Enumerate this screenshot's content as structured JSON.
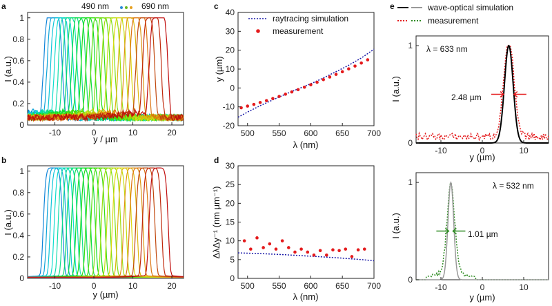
{
  "panels": {
    "a": {
      "label": "a",
      "xlabel": "y / µm",
      "ylabel": "I (a.u.)",
      "note_left": "490 nm",
      "note_right": "690 nm",
      "xticks": [
        "-10",
        "0",
        "10",
        "20"
      ],
      "yticks": [
        "0",
        "0.2",
        "0.4",
        "0.6",
        "0.8",
        "1"
      ]
    },
    "b": {
      "label": "b",
      "xlabel": "y (µm)",
      "ylabel": "I (a.u.)",
      "xticks": [
        "-10",
        "0",
        "10",
        "20"
      ],
      "yticks": [
        "0",
        "0.2",
        "0.4",
        "0.6",
        "0.8",
        "1"
      ]
    },
    "c": {
      "label": "c",
      "xlabel": "λ (nm)",
      "ylabel": "y (µm)",
      "legend": [
        "raytracing simulation",
        "measurement"
      ],
      "xticks": [
        "500",
        "550",
        "600",
        "650",
        "700"
      ],
      "yticks": [
        "-20",
        "-10",
        "0",
        "10",
        "20",
        "30",
        "40"
      ]
    },
    "d": {
      "label": "d",
      "xlabel": "λ (nm)",
      "ylabel": "ΔλΔy⁻¹ (nm µm⁻¹)",
      "xticks": [
        "500",
        "550",
        "600",
        "650",
        "700"
      ],
      "yticks": [
        "0",
        "5",
        "10",
        "15",
        "20",
        "25",
        "30"
      ]
    },
    "e": {
      "label": "e",
      "legend": [
        "wave-optical simulation",
        "measurement"
      ],
      "top": {
        "lambda_label": "λ = 633 nm",
        "width_label": "2.48 µm",
        "xlabel": "y (µm)",
        "ylabel": "I (a.u.)",
        "xticks": [
          "-10",
          "0",
          "10"
        ],
        "yticks": [
          "0",
          "1"
        ]
      },
      "bottom": {
        "lambda_label": "λ = 532 nm",
        "width_label": "1.01 µm",
        "xlabel": "y (µm)",
        "ylabel": "I (a.u.)",
        "xticks": [
          "-10",
          "0",
          "10"
        ],
        "yticks": [
          "0",
          "1"
        ]
      }
    }
  },
  "colors": {
    "simulation_line": "#1a1aa8",
    "measurement_dots": "#e41a1c",
    "wave_black": "#000000",
    "wave_gray": "#999999",
    "meas_red": "#e41a1c",
    "meas_green": "#2e8b22",
    "arrow_red": "#e41a1c",
    "arrow_green": "#2e8b22",
    "label_blue": "#2a8ad8",
    "label_red": "#b01010"
  },
  "chart_data": [
    {
      "type": "line",
      "panel": "a",
      "description_series": "normalized measured intensity profiles for wavelengths 490–690 nm",
      "x_range": [
        -17,
        23
      ],
      "ylim": [
        0,
        1.05
      ],
      "series_peaks_um": [
        -10.5,
        -9.6,
        -8.7,
        -7.7,
        -6.7,
        -5.6,
        -4.5,
        -3.3,
        -2.1,
        -0.9,
        0.4,
        1.7,
        3.0,
        4.4,
        5.8,
        7.2,
        8.6,
        10.1,
        11.6,
        13.2,
        14.9,
        16.6
      ],
      "series_wavelength_nm": [
        490,
        500,
        510,
        520,
        530,
        540,
        550,
        560,
        570,
        580,
        590,
        600,
        610,
        620,
        630,
        640,
        650,
        660,
        670,
        680,
        690,
        700
      ]
    },
    {
      "type": "line",
      "panel": "b",
      "x_range": [
        -17,
        23
      ],
      "ylim": [
        0,
        1.05
      ],
      "series_peaks_um": [
        -10.5,
        -9.6,
        -8.7,
        -7.7,
        -6.7,
        -5.6,
        -4.5,
        -3.3,
        -2.1,
        -0.9,
        0.4,
        1.7,
        3.0,
        4.4,
        5.8,
        7.2,
        8.6,
        10.1,
        11.6,
        13.2,
        14.9,
        16.6
      ]
    },
    {
      "type": "scatter",
      "panel": "c",
      "xlim": [
        485,
        700
      ],
      "ylim": [
        -20,
        40
      ],
      "line_x": [
        485,
        500,
        520,
        540,
        560,
        580,
        600,
        620,
        640,
        660,
        680,
        700
      ],
      "line_y": [
        -15.5,
        -12.8,
        -9.4,
        -6.3,
        -3.3,
        -0.5,
        2.2,
        5.3,
        8.6,
        12.0,
        15.9,
        20.5
      ],
      "x": [
        490,
        500,
        510,
        520,
        530,
        540,
        550,
        560,
        570,
        580,
        590,
        600,
        610,
        620,
        630,
        640,
        650,
        660,
        670,
        680,
        690
      ],
      "y": [
        -10.5,
        -9.6,
        -8.7,
        -7.7,
        -6.7,
        -5.6,
        -4.5,
        -3.3,
        -2.1,
        -0.9,
        0.4,
        1.7,
        3.0,
        4.4,
        5.8,
        7.2,
        8.6,
        10.1,
        11.6,
        13.2,
        14.9
      ]
    },
    {
      "type": "scatter",
      "panel": "d",
      "xlim": [
        485,
        700
      ],
      "ylim": [
        0,
        30
      ],
      "line_x": [
        485,
        520,
        560,
        600,
        640,
        680,
        700
      ],
      "line_y": [
        6.8,
        6.6,
        6.3,
        5.9,
        5.5,
        5.0,
        4.7
      ],
      "x": [
        495,
        505,
        515,
        525,
        535,
        545,
        555,
        565,
        575,
        585,
        595,
        605,
        615,
        625,
        635,
        645,
        655,
        665,
        675,
        685
      ],
      "y": [
        10.0,
        7.8,
        10.8,
        8.2,
        9.2,
        7.8,
        10.0,
        8.2,
        7.0,
        7.8,
        7.0,
        6.2,
        7.4,
        6.2,
        7.6,
        7.4,
        7.8,
        5.8,
        7.6,
        7.8
      ]
    },
    {
      "type": "line",
      "panel": "e-top",
      "xlim": [
        -16,
        16
      ],
      "ylim": [
        0,
        1.1
      ],
      "peak_um": 6.4,
      "fwhm_um": 2.48
    },
    {
      "type": "line",
      "panel": "e-bottom",
      "xlim": [
        -16,
        16
      ],
      "ylim": [
        0,
        1.1
      ],
      "peak_um": -7.6,
      "fwhm_um": 1.01
    }
  ]
}
